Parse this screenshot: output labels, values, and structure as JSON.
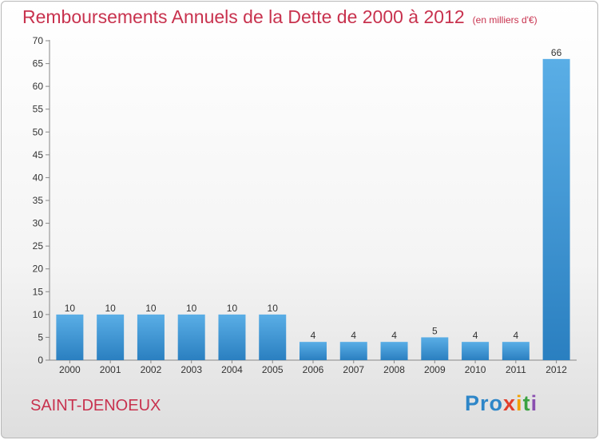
{
  "title": "Remboursements Annuels de la Dette de 2000 à 2012",
  "subtitle": "(en milliers d'€)",
  "commune": "SAINT-DENOEUX",
  "logo": {
    "p1": "Pro",
    "p2": "x",
    "p3": "i",
    "p4": "t",
    "p5": "i"
  },
  "colors": {
    "accent": "#c8324e",
    "bar_light": "#5aaee6",
    "bar_dark": "#2a7fc0"
  },
  "chart_data": {
    "type": "bar",
    "categories": [
      "2000",
      "2001",
      "2002",
      "2003",
      "2004",
      "2005",
      "2006",
      "2007",
      "2008",
      "2009",
      "2010",
      "2011",
      "2012"
    ],
    "values": [
      10,
      10,
      10,
      10,
      10,
      10,
      4,
      4,
      4,
      5,
      4,
      4,
      66
    ],
    "title": "Remboursements Annuels de la Dette de 2000 à 2012",
    "xlabel": "",
    "ylabel": "",
    "ylim": [
      0,
      70
    ],
    "yticks": [
      0,
      5,
      10,
      15,
      20,
      25,
      30,
      35,
      40,
      45,
      50,
      55,
      60,
      65,
      70
    ],
    "grid": false,
    "legend": "none"
  }
}
